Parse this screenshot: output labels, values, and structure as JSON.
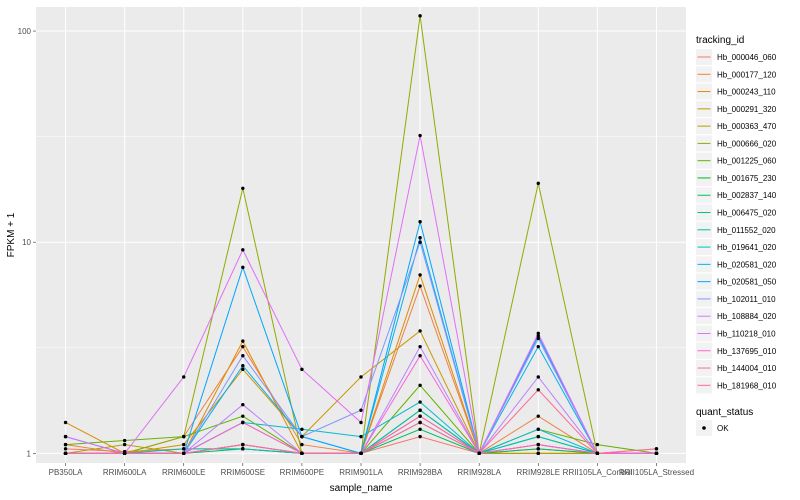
{
  "chart_data": {
    "type": "line",
    "title": "",
    "xlabel": "sample_name",
    "ylabel": "FPKM + 1",
    "y_scale": "log10",
    "ylim": [
      0.9,
      130
    ],
    "y_ticks": [
      1,
      10,
      100
    ],
    "y_tick_labels": [
      "1",
      "10",
      "100"
    ],
    "grid": true,
    "panel_background": "#ebebeb",
    "categories": [
      "PB350LA",
      "RRIM600LA",
      "RRIM600LE",
      "RRIM600SE",
      "RRIM600PE",
      "RRIM901LA",
      "RRIM928BA",
      "RRIM928LA",
      "RRIM928LE",
      "RRII105LA_Control",
      "RRII105LA_Stressed"
    ],
    "legend": {
      "title": "tracking_id",
      "placement": "right",
      "point_legend_title": "quant_status",
      "point_legend_label": "OK"
    },
    "series": [
      {
        "name": "Hb_000046_060",
        "color": "#F8766D",
        "values": [
          1.05,
          1.02,
          1.05,
          1.05,
          1.0,
          1.0,
          1.2,
          1.0,
          1.05,
          1.0,
          1.05
        ]
      },
      {
        "name": "Hb_000177_120",
        "color": "#EE8044",
        "values": [
          1.1,
          1.0,
          1.2,
          3.2,
          1.1,
          1.0,
          6.2,
          1.0,
          1.5,
          1.0,
          1.0
        ]
      },
      {
        "name": "Hb_000243_110",
        "color": "#DF8C00",
        "values": [
          1.4,
          1.0,
          1.0,
          3.4,
          1.0,
          1.0,
          7.0,
          1.0,
          1.0,
          1.0,
          1.0
        ]
      },
      {
        "name": "Hb_000291_320",
        "color": "#CB9700",
        "values": [
          1.0,
          1.0,
          1.1,
          2.5,
          1.2,
          2.3,
          3.8,
          1.0,
          1.0,
          1.0,
          1.0
        ]
      },
      {
        "name": "Hb_000363_470",
        "color": "#B3A000",
        "values": [
          1.0,
          1.1,
          1.0,
          1.4,
          1.0,
          1.0,
          1.5,
          1.0,
          1.0,
          1.0,
          1.0
        ]
      },
      {
        "name": "Hb_000666_020",
        "color": "#94A900",
        "values": [
          1.0,
          1.0,
          1.2,
          18.0,
          1.0,
          1.0,
          118.0,
          1.0,
          19.0,
          1.0,
          1.0
        ]
      },
      {
        "name": "Hb_001225_060",
        "color": "#64B200",
        "values": [
          1.1,
          1.15,
          1.2,
          1.5,
          1.0,
          1.0,
          2.1,
          1.0,
          1.3,
          1.1,
          1.0
        ]
      },
      {
        "name": "Hb_001675_230",
        "color": "#00B81B",
        "values": [
          1.0,
          1.0,
          1.0,
          1.1,
          1.0,
          1.0,
          1.6,
          1.0,
          1.1,
          1.0,
          1.0
        ]
      },
      {
        "name": "Hb_002837_140",
        "color": "#00BD5C",
        "values": [
          1.0,
          1.0,
          1.0,
          1.05,
          1.0,
          1.0,
          1.3,
          1.0,
          1.05,
          1.0,
          1.0
        ]
      },
      {
        "name": "Hb_006475_020",
        "color": "#00C08B",
        "values": [
          1.0,
          1.0,
          1.0,
          1.1,
          1.0,
          1.0,
          1.4,
          1.0,
          1.2,
          1.0,
          1.0
        ]
      },
      {
        "name": "Hb_011552_020",
        "color": "#00BFB2",
        "values": [
          1.0,
          1.0,
          1.05,
          1.05,
          1.0,
          1.0,
          1.6,
          1.0,
          1.2,
          1.0,
          1.0
        ]
      },
      {
        "name": "Hb_019641_020",
        "color": "#00BBD4",
        "values": [
          1.0,
          1.0,
          1.0,
          1.4,
          1.3,
          1.2,
          1.75,
          1.0,
          1.3,
          1.0,
          1.0
        ]
      },
      {
        "name": "Hb_020581_020",
        "color": "#00B2EF",
        "values": [
          1.0,
          1.0,
          1.0,
          2.6,
          1.2,
          1.0,
          10.5,
          1.0,
          3.2,
          1.0,
          1.0
        ]
      },
      {
        "name": "Hb_020581_050",
        "color": "#00A5FF",
        "values": [
          1.2,
          1.0,
          1.0,
          7.6,
          1.2,
          1.0,
          12.5,
          1.0,
          3.6,
          1.0,
          1.0
        ]
      },
      {
        "name": "Hb_102011_010",
        "color": "#7F96FF",
        "values": [
          1.0,
          1.0,
          1.0,
          2.9,
          1.2,
          1.6,
          10.0,
          1.0,
          3.5,
          1.0,
          1.0
        ]
      },
      {
        "name": "Hb_108884_020",
        "color": "#BC81FF",
        "values": [
          1.0,
          1.0,
          1.0,
          1.7,
          1.0,
          1.0,
          3.2,
          1.0,
          2.3,
          1.0,
          1.0
        ]
      },
      {
        "name": "Hb_110218_010",
        "color": "#E26EF7",
        "values": [
          1.2,
          1.0,
          2.3,
          9.2,
          2.5,
          1.4,
          32.0,
          1.0,
          3.7,
          1.0,
          1.0
        ]
      },
      {
        "name": "Hb_137695_010",
        "color": "#F863DF",
        "values": [
          1.0,
          1.0,
          1.0,
          1.4,
          1.0,
          1.0,
          2.9,
          1.0,
          1.1,
          1.0,
          1.0
        ]
      },
      {
        "name": "Hb_144004_010",
        "color": "#FF62BF",
        "values": [
          1.0,
          1.0,
          1.0,
          1.1,
          1.0,
          1.0,
          1.5,
          1.0,
          1.1,
          1.0,
          1.0
        ]
      },
      {
        "name": "Hb_181968_010",
        "color": "#FF6A9A",
        "values": [
          1.0,
          1.0,
          1.0,
          1.1,
          1.0,
          1.0,
          1.4,
          1.0,
          2.0,
          1.0,
          1.05
        ]
      }
    ]
  }
}
